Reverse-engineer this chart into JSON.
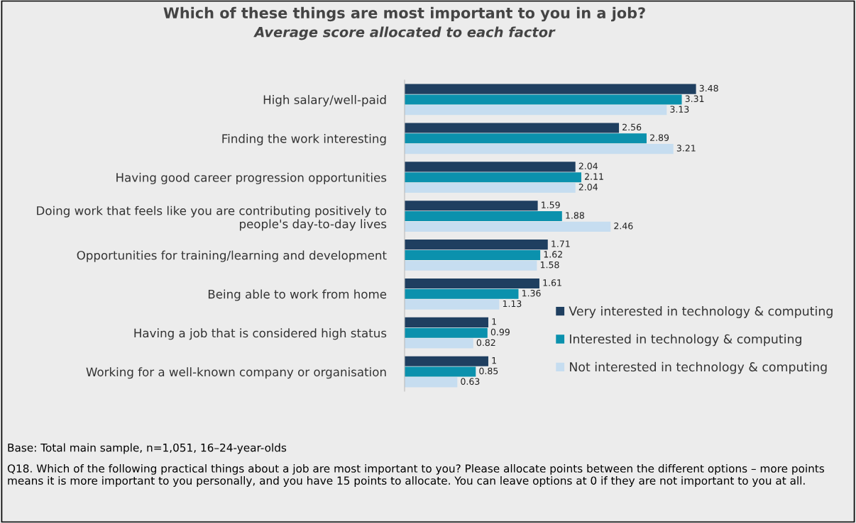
{
  "chart_data": {
    "type": "bar",
    "orientation": "horizontal",
    "title": "Which of these things are most important to you in a job?",
    "subtitle": "Average score allocated to each factor",
    "categories": [
      "High salary/well-paid",
      "Finding the work interesting",
      "Having good career progression opportunities",
      "Doing work that feels like you are contributing positively to\npeople's day-to-day lives",
      "Opportunities for training/learning and development",
      "Being able to work from home",
      "Having a job that is considered high status",
      "Working for a well-known company or organisation"
    ],
    "series": [
      {
        "name": "Very interested in technology & computing",
        "color": "#1f3f60",
        "values": [
          3.48,
          2.56,
          2.04,
          1.59,
          1.71,
          1.61,
          1,
          1
        ]
      },
      {
        "name": "Interested in technology & computing",
        "color": "#0b91ad",
        "values": [
          3.31,
          2.89,
          2.11,
          1.88,
          1.62,
          1.36,
          0.99,
          0.85
        ]
      },
      {
        "name": "Not interested in technology & computing",
        "color": "#c6ddf0",
        "values": [
          3.13,
          3.21,
          2.04,
          2.46,
          1.58,
          1.13,
          0.82,
          0.63
        ]
      }
    ],
    "data_labels": true,
    "legend": "right",
    "grid": false,
    "annotations": [
      "Base: Total main sample, n=1,051, 16–24-year-olds",
      "Q18. Which of the following practical things about a job are most important to you? Please allocate points between the different options – more points means it is more important to you personally, and you have 15 points to allocate. You can leave options at 0 if they are not important to you at all."
    ]
  }
}
